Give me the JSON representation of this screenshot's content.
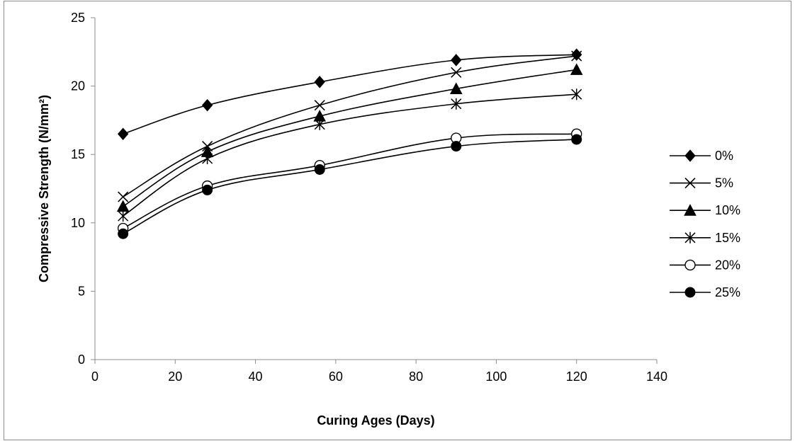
{
  "chart_data": {
    "type": "line",
    "title": "",
    "xlabel": "Curing Ages  (Days)",
    "ylabel": "Compressive Strength (N/mm²)",
    "xlim": [
      0,
      140
    ],
    "ylim": [
      0,
      25
    ],
    "xticks": [
      0,
      20,
      40,
      60,
      80,
      100,
      120,
      140
    ],
    "yticks": [
      0,
      5,
      10,
      15,
      20,
      25
    ],
    "x": [
      7,
      28,
      56,
      90,
      120
    ],
    "grid": false,
    "legend_position": "right",
    "series": [
      {
        "name": "0%",
        "marker": "diamond",
        "values": [
          16.5,
          18.6,
          20.3,
          21.9,
          22.3
        ]
      },
      {
        "name": "5%",
        "marker": "x",
        "values": [
          11.9,
          15.6,
          18.6,
          21.0,
          22.2
        ]
      },
      {
        "name": "10%",
        "marker": "triangle",
        "values": [
          11.2,
          15.2,
          17.8,
          19.8,
          21.2
        ]
      },
      {
        "name": "15%",
        "marker": "star",
        "values": [
          10.5,
          14.7,
          17.2,
          18.7,
          19.4
        ]
      },
      {
        "name": "20%",
        "marker": "circle-open",
        "values": [
          9.6,
          12.7,
          14.2,
          16.2,
          16.5
        ]
      },
      {
        "name": "25%",
        "marker": "circle-filled",
        "values": [
          9.2,
          12.4,
          13.9,
          15.6,
          16.1
        ]
      }
    ]
  }
}
